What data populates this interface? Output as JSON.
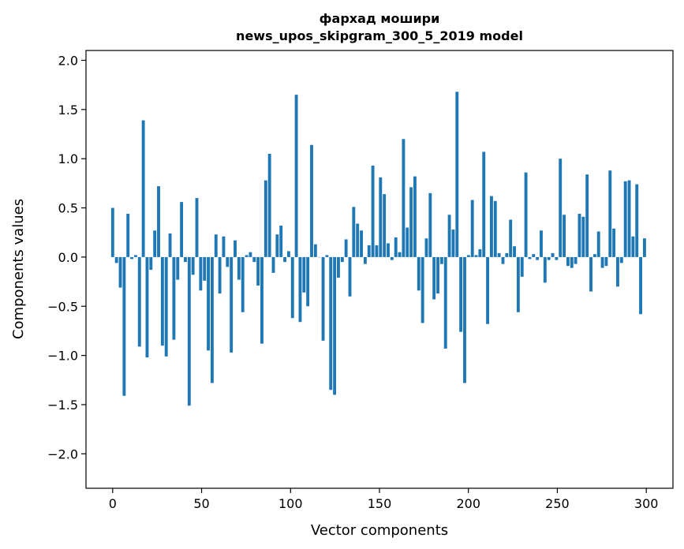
{
  "chart_data": {
    "type": "bar",
    "title": "фархад мошири",
    "subtitle": "news_upos_skipgram_300_5_2019 model",
    "xlabel": "Vector components",
    "ylabel": "Components values",
    "xlim": [
      -15,
      315
    ],
    "ylim": [
      -2.35,
      2.1
    ],
    "xticks": [
      0,
      50,
      100,
      150,
      200,
      250,
      300
    ],
    "xtick_labels": [
      "0",
      "50",
      "100",
      "150",
      "200",
      "250",
      "300"
    ],
    "yticks": [
      -2.0,
      -1.5,
      -1.0,
      -0.5,
      0.0,
      0.5,
      1.0,
      1.5,
      2.0
    ],
    "ytick_labels": [
      "−2.0",
      "−1.5",
      "−1.0",
      "−0.5",
      "0.0",
      "0.5",
      "1.0",
      "1.5",
      "2.0"
    ],
    "grid": false,
    "bar_color": "#1f77b4",
    "values": [
      0.5,
      -0.06,
      -0.31,
      -1.41,
      0.44,
      -0.02,
      0.02,
      -0.91,
      1.39,
      -1.02,
      -0.13,
      0.27,
      0.72,
      -0.9,
      -1.01,
      0.24,
      -0.84,
      -0.23,
      0.56,
      -0.05,
      -1.51,
      -0.18,
      0.6,
      -0.34,
      -0.24,
      -0.95,
      -1.28,
      0.23,
      -0.37,
      0.21,
      -0.1,
      -0.97,
      0.17,
      -0.23,
      -0.56,
      0.02,
      0.05,
      -0.05,
      -0.29,
      -0.88,
      0.78,
      1.05,
      -0.16,
      0.23,
      0.32,
      -0.05,
      0.06,
      -0.62,
      1.65,
      -0.66,
      -0.36,
      -0.5,
      1.14,
      0.13,
      0.0,
      -0.85,
      0.02,
      -1.35,
      -1.4,
      -0.21,
      -0.05,
      0.18,
      -0.4,
      0.51,
      0.34,
      0.27,
      -0.07,
      0.12,
      0.93,
      0.12,
      0.81,
      0.64,
      0.14,
      -0.03,
      0.2,
      0.05,
      1.2,
      0.3,
      0.71,
      0.82,
      -0.34,
      -0.67,
      0.19,
      0.65,
      -0.43,
      -0.37,
      -0.07,
      -0.93,
      0.43,
      0.28,
      1.68,
      -0.76,
      -1.28,
      0.02,
      0.58,
      0.02,
      0.08,
      1.07,
      -0.68,
      0.62,
      0.57,
      0.04,
      -0.07,
      0.04,
      0.38,
      0.11,
      -0.56,
      -0.2,
      0.86,
      -0.02,
      0.03,
      -0.03,
      0.27,
      -0.26,
      -0.03,
      0.04,
      -0.03,
      1.0,
      0.43,
      -0.09,
      -0.11,
      -0.07,
      0.44,
      0.41,
      0.84,
      -0.35,
      0.03,
      0.26,
      -0.11,
      -0.09,
      0.88,
      0.29,
      -0.3,
      -0.06,
      0.77,
      0.78,
      0.21,
      0.74,
      -0.58,
      0.19
    ]
  }
}
